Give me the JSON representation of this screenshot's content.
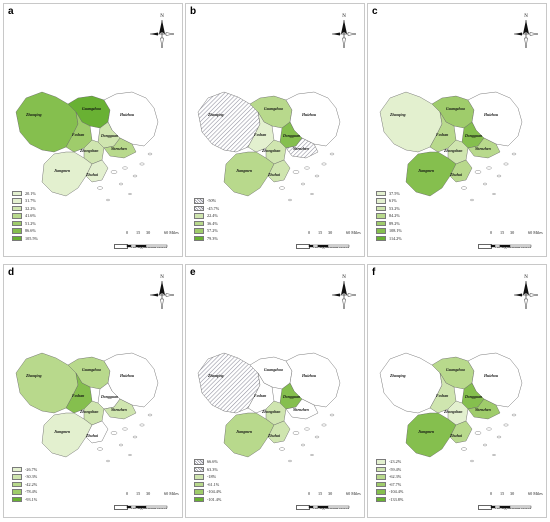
{
  "north_label": "N",
  "scale": {
    "ticks": [
      "0",
      "15",
      "30",
      "60 Miles"
    ]
  },
  "no_effect_label": "No significant effect",
  "cities": {
    "zhaoqing": "Zhaoqing",
    "guangzhou": "Guangzhou",
    "huizhou": "Huizhou",
    "foshan": "Foshan",
    "dongguan": "Dongguan",
    "shenzhen": "Shenzhen",
    "zhongshan": "Zhongshan",
    "jiangmen": "Jiangmen",
    "zhuhai": "Zhuhai"
  },
  "colors": {
    "none": "#ffffff",
    "green": [
      "#e3f0cf",
      "#cfe5af",
      "#b8d98c",
      "#9fcc6b",
      "#85bf4e",
      "#69b133"
    ],
    "hatch": "#8e8e9c"
  },
  "panels": [
    {
      "letter": "a",
      "legend": [
        "20.1%",
        "31.7%",
        "32.2%",
        "41.6%",
        "51.2%",
        "86.6%",
        "105.5%"
      ],
      "legend_fill": [
        0,
        0,
        1,
        2,
        3,
        4,
        5
      ],
      "fill": {
        "zhaoqing": 4,
        "guangzhou": 5,
        "huizhou": -1,
        "foshan": 3,
        "dongguan": 1,
        "shenzhen": 2,
        "zhongshan": 1,
        "jiangmen": 0,
        "zhuhai": 0
      }
    },
    {
      "letter": "b",
      "legend": [
        "-50%",
        "-45.7%",
        "22.4%",
        "36.4%",
        "57.2%",
        "79.3%"
      ],
      "legend_fill": [
        "h",
        "h",
        1,
        2,
        3,
        5
      ],
      "fill": {
        "zhaoqing": "h",
        "guangzhou": 2,
        "huizhou": -1,
        "foshan": 0,
        "dongguan": 4,
        "shenzhen": "h",
        "zhongshan": 1,
        "jiangmen": 2,
        "zhuhai": 1
      }
    },
    {
      "letter": "c",
      "legend": [
        "37.5%",
        "61%",
        "53.2%",
        "84.2%",
        "89.2%",
        "108.1%",
        "114.2%"
      ],
      "legend_fill": [
        0,
        0,
        1,
        2,
        3,
        4,
        5
      ],
      "fill": {
        "zhaoqing": 0,
        "guangzhou": 3,
        "huizhou": -1,
        "foshan": 2,
        "dongguan": 4,
        "shenzhen": 2,
        "zhongshan": 1,
        "jiangmen": 4,
        "zhuhai": 2
      }
    },
    {
      "letter": "d",
      "legend": [
        "-26.7%",
        "-30.3%",
        "-42.2%",
        "-78.4%",
        "-93.1%"
      ],
      "legend_fill": [
        0,
        1,
        2,
        3,
        5
      ],
      "fill": {
        "zhaoqing": 2,
        "guangzhou": 2,
        "huizhou": -1,
        "foshan": 4,
        "dongguan": -1,
        "shenzhen": 1,
        "zhongshan": 1,
        "jiangmen": 0,
        "zhuhai": -1
      }
    },
    {
      "letter": "e",
      "legend": [
        "66.6%",
        "63.3%",
        "-18%",
        "-61.1%",
        "-104.4%",
        "-101.4%"
      ],
      "legend_fill": [
        "h",
        "h",
        1,
        2,
        3,
        5
      ],
      "fill": {
        "zhaoqing": "h",
        "guangzhou": -1,
        "huizhou": -1,
        "foshan": -1,
        "dongguan": 4,
        "shenzhen": -1,
        "zhongshan": 1,
        "jiangmen": 2,
        "zhuhai": 1
      }
    },
    {
      "letter": "f",
      "legend": [
        "-23.2%",
        "-59.4%",
        "-62.3%",
        "-67.7%",
        "-104.4%",
        "-133.8%"
      ],
      "legend_fill": [
        0,
        1,
        2,
        3,
        4,
        5
      ],
      "fill": {
        "zhaoqing": -1,
        "guangzhou": 2,
        "huizhou": -1,
        "foshan": 1,
        "dongguan": 4,
        "shenzhen": 3,
        "zhongshan": 0,
        "jiangmen": 4,
        "zhuhai": 2
      }
    }
  ]
}
